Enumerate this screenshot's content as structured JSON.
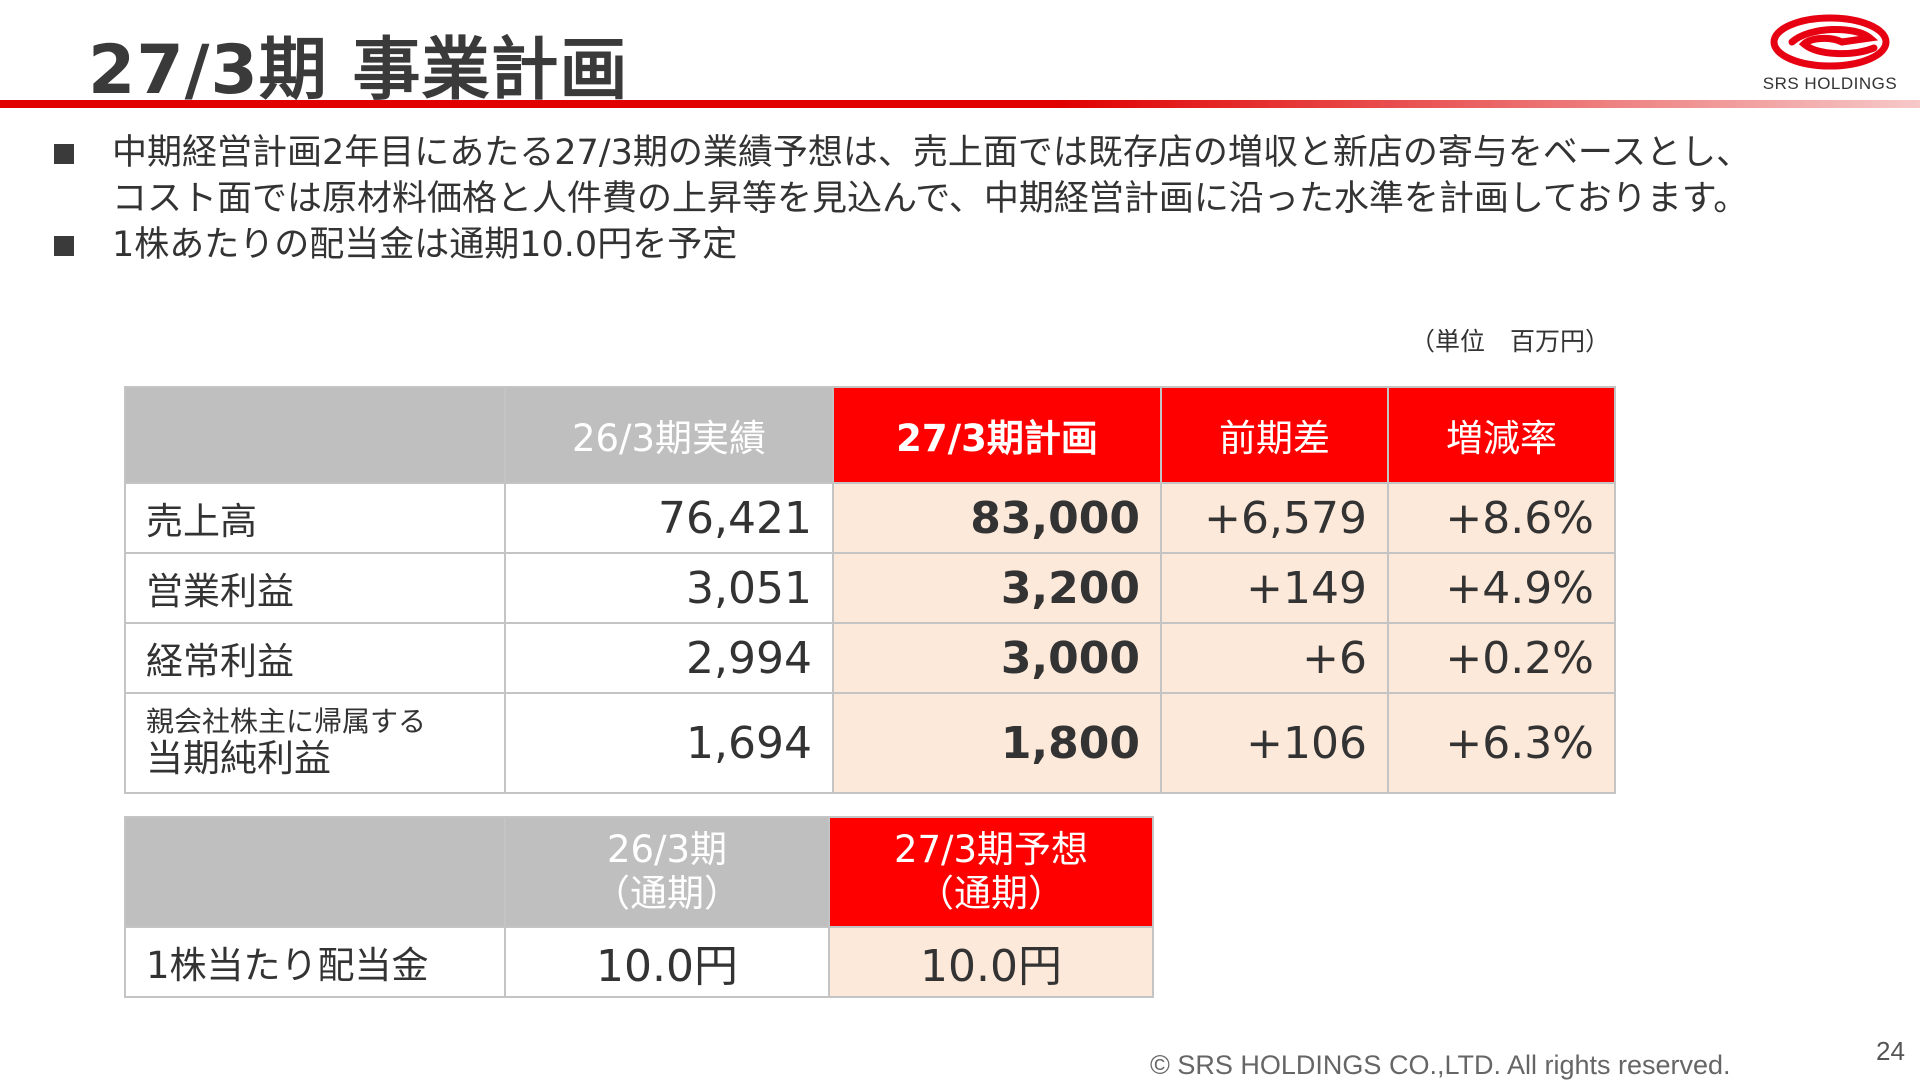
{
  "slide": {
    "title": "27/3期 事業計画",
    "logo_text": "SRS HOLDINGS",
    "accent_color": "#ff0000",
    "bullets": [
      "中期経営計画2年目にあたる27/3期の業績予想は、売上面では既存店の増収と新店の寄与をベースとし、\nコスト面では原材料価格と人件費の上昇等を見込んで、中期経営計画に沿った水準を計画しております。",
      "1株あたりの配当金は通期10.0円を予定"
    ],
    "unit_label": "（単位　百万円）",
    "copyright": "© SRS HOLDINGS CO.,LTD. All rights reserved.",
    "page_number": "24"
  },
  "plan_table": {
    "headers": [
      "",
      "26/3期実績",
      "27/3期計画",
      "前期差",
      "増減率"
    ],
    "rows": [
      {
        "label": "売上高",
        "actual": "76,421",
        "plan": "83,000",
        "diff": "+6,579",
        "rate": "+8.6%"
      },
      {
        "label": "営業利益",
        "actual": "3,051",
        "plan": "3,200",
        "diff": "+149",
        "rate": "+4.9%"
      },
      {
        "label": "経常利益",
        "actual": "2,994",
        "plan": "3,000",
        "diff": "+6",
        "rate": "+0.2%"
      },
      {
        "label_small": "親会社株主に帰属する",
        "label": "当期純利益",
        "actual": "1,694",
        "plan": "1,800",
        "diff": "+106",
        "rate": "+6.3%"
      }
    ]
  },
  "dividend_table": {
    "col1_line1": "26/3期",
    "col1_line2": "（通期）",
    "col2_line1": "27/3期予想",
    "col2_line2": "（通期）",
    "row_label": "1株当たり配当金",
    "value_prev": "10.0円",
    "value_forecast": "10.0円"
  }
}
